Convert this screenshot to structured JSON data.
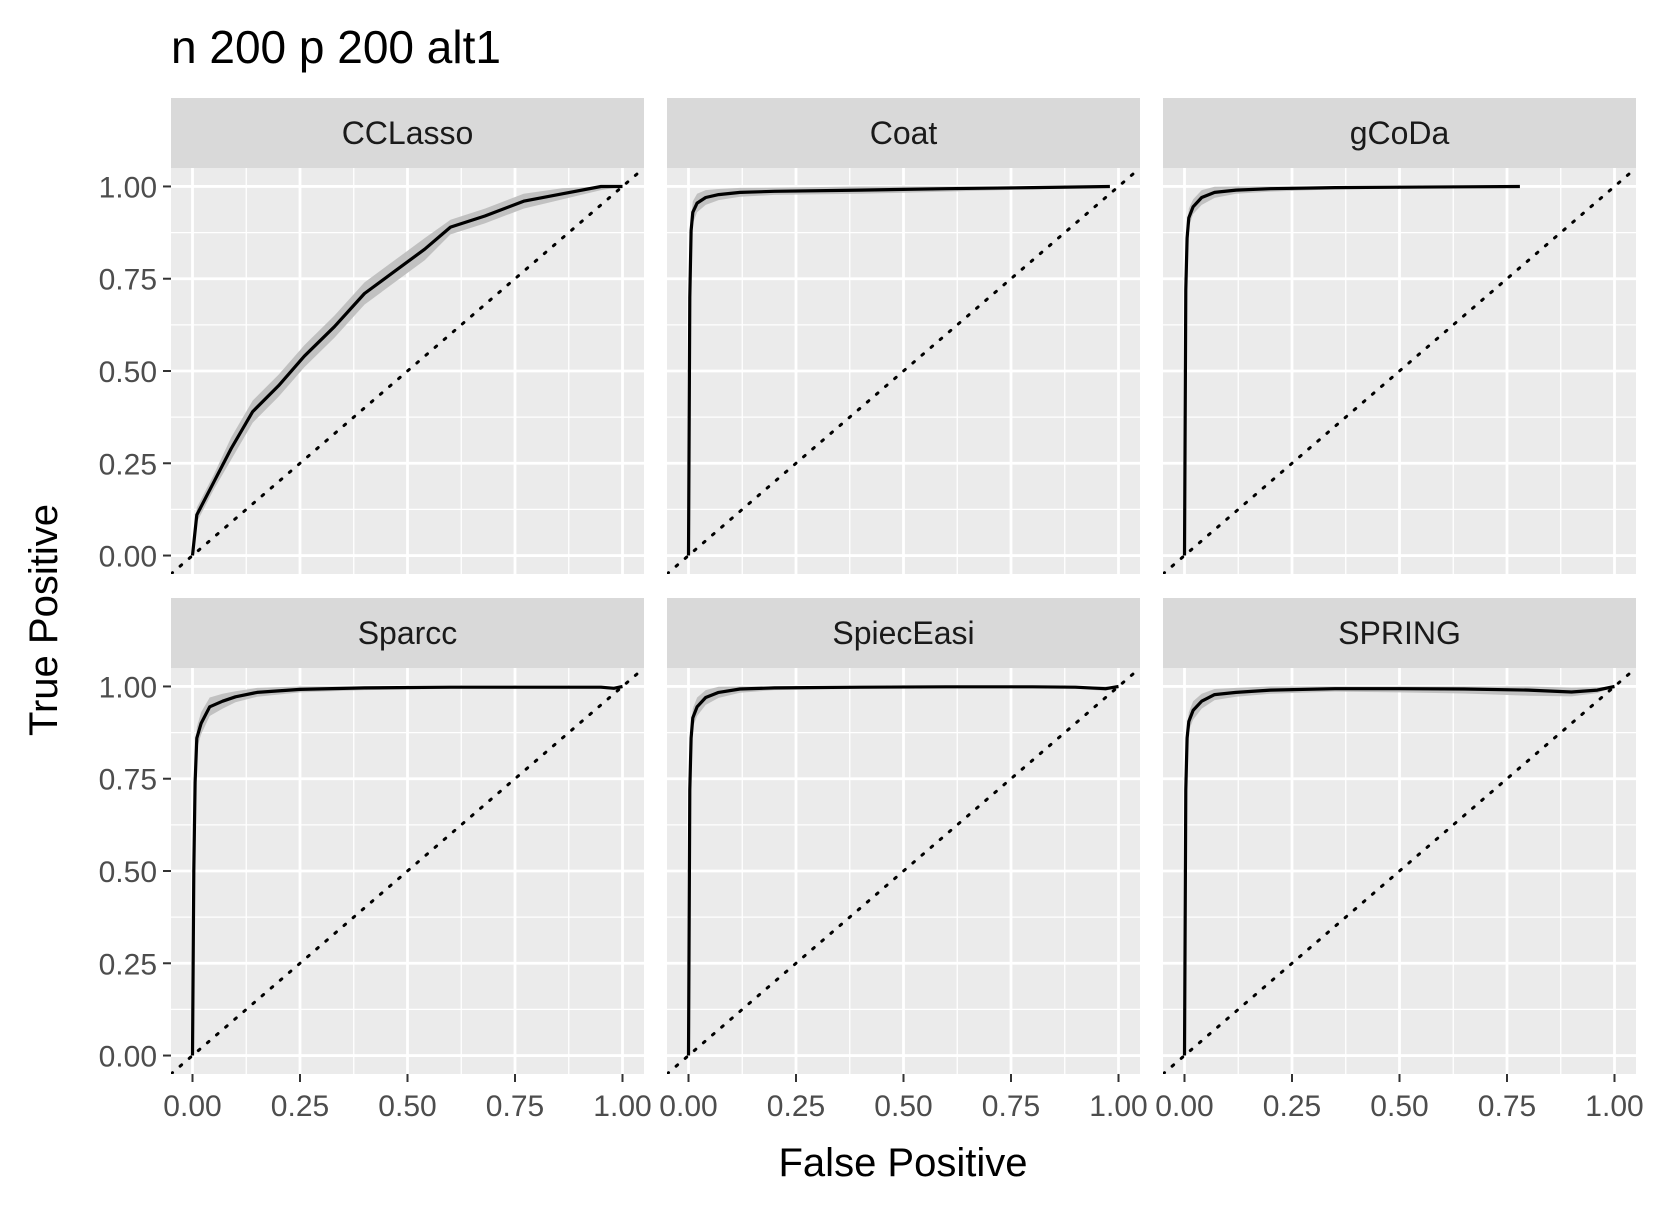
{
  "chart_data": {
    "type": "line",
    "title": "n 200 p 200 alt1",
    "xlabel": "False Positive",
    "ylabel": "True Positive",
    "xlim": [
      -0.05,
      1.05
    ],
    "ylim": [
      -0.05,
      1.05
    ],
    "x_ticks": [
      "0.00",
      "0.25",
      "0.50",
      "0.75",
      "1.00"
    ],
    "y_ticks": [
      "0.00",
      "0.25",
      "0.50",
      "0.75",
      "1.00"
    ],
    "grid": true,
    "reference_line": "diagonal dotted y = x",
    "colors": {
      "panel_bg": "#ebebeb",
      "strip_bg": "#d9d9d9",
      "grid": "#ffffff",
      "line": "#000000",
      "band": "#bdbdbd"
    },
    "panels": [
      {
        "name": "CCLasso",
        "x": [
          0,
          0.01,
          0.05,
          0.09,
          0.14,
          0.2,
          0.26,
          0.33,
          0.4,
          0.47,
          0.54,
          0.6,
          0.68,
          0.77,
          0.86,
          0.95,
          1.0
        ],
        "y": [
          0,
          0.11,
          0.2,
          0.29,
          0.39,
          0.46,
          0.54,
          0.62,
          0.71,
          0.77,
          0.83,
          0.89,
          0.92,
          0.96,
          0.98,
          1.0,
          1.0
        ],
        "band_width": [
          0,
          0.02,
          0.02,
          0.03,
          0.03,
          0.03,
          0.03,
          0.03,
          0.03,
          0.03,
          0.03,
          0.02,
          0.02,
          0.02,
          0.015,
          0.01,
          0
        ]
      },
      {
        "name": "Coat",
        "x": [
          0,
          0.003,
          0.006,
          0.01,
          0.02,
          0.04,
          0.07,
          0.12,
          0.2,
          0.4,
          0.6,
          0.8,
          0.98
        ],
        "y": [
          0,
          0.7,
          0.88,
          0.93,
          0.955,
          0.97,
          0.978,
          0.984,
          0.987,
          0.99,
          0.994,
          0.997,
          1.0
        ],
        "band_width": [
          0,
          0.04,
          0.03,
          0.03,
          0.025,
          0.02,
          0.015,
          0.012,
          0.01,
          0.01,
          0.008,
          0.005,
          0
        ]
      },
      {
        "name": "gCoDa",
        "x": [
          0,
          0.003,
          0.006,
          0.01,
          0.02,
          0.04,
          0.07,
          0.12,
          0.2,
          0.35,
          0.5,
          0.65,
          0.78
        ],
        "y": [
          0,
          0.72,
          0.86,
          0.915,
          0.945,
          0.97,
          0.984,
          0.99,
          0.994,
          0.997,
          0.998,
          0.999,
          1.0
        ],
        "band_width": [
          0,
          0.04,
          0.03,
          0.025,
          0.02,
          0.02,
          0.015,
          0.01,
          0.008,
          0.005,
          0.004,
          0.003,
          0
        ]
      },
      {
        "name": "Sparcc",
        "x": [
          0,
          0.003,
          0.006,
          0.01,
          0.02,
          0.04,
          0.07,
          0.1,
          0.15,
          0.25,
          0.4,
          0.6,
          0.8,
          0.95,
          0.98,
          1.0
        ],
        "y": [
          0,
          0.5,
          0.74,
          0.86,
          0.9,
          0.945,
          0.96,
          0.972,
          0.984,
          0.992,
          0.996,
          0.998,
          0.998,
          0.998,
          0.995,
          1.0
        ],
        "band_width": [
          0,
          0.05,
          0.04,
          0.03,
          0.03,
          0.025,
          0.02,
          0.015,
          0.012,
          0.008,
          0.006,
          0.004,
          0.004,
          0.004,
          0.004,
          0
        ]
      },
      {
        "name": "SpiecEasi",
        "x": [
          0,
          0.003,
          0.006,
          0.01,
          0.02,
          0.04,
          0.07,
          0.12,
          0.2,
          0.4,
          0.6,
          0.8,
          0.9,
          0.97,
          1.0
        ],
        "y": [
          0,
          0.72,
          0.86,
          0.915,
          0.945,
          0.97,
          0.984,
          0.993,
          0.996,
          0.998,
          0.999,
          0.999,
          0.998,
          0.994,
          1.0
        ],
        "band_width": [
          0,
          0.04,
          0.03,
          0.025,
          0.025,
          0.02,
          0.015,
          0.01,
          0.006,
          0.004,
          0.003,
          0.003,
          0.004,
          0.006,
          0
        ]
      },
      {
        "name": "SPRING",
        "x": [
          0,
          0.003,
          0.006,
          0.01,
          0.02,
          0.04,
          0.07,
          0.12,
          0.2,
          0.35,
          0.5,
          0.65,
          0.8,
          0.9,
          0.96,
          1.0
        ],
        "y": [
          0,
          0.72,
          0.86,
          0.905,
          0.935,
          0.96,
          0.978,
          0.984,
          0.99,
          0.994,
          0.994,
          0.993,
          0.99,
          0.985,
          0.99,
          1.0
        ],
        "band_width": [
          0,
          0.04,
          0.03,
          0.025,
          0.025,
          0.02,
          0.015,
          0.012,
          0.01,
          0.008,
          0.01,
          0.012,
          0.015,
          0.012,
          0.008,
          0
        ]
      }
    ]
  }
}
